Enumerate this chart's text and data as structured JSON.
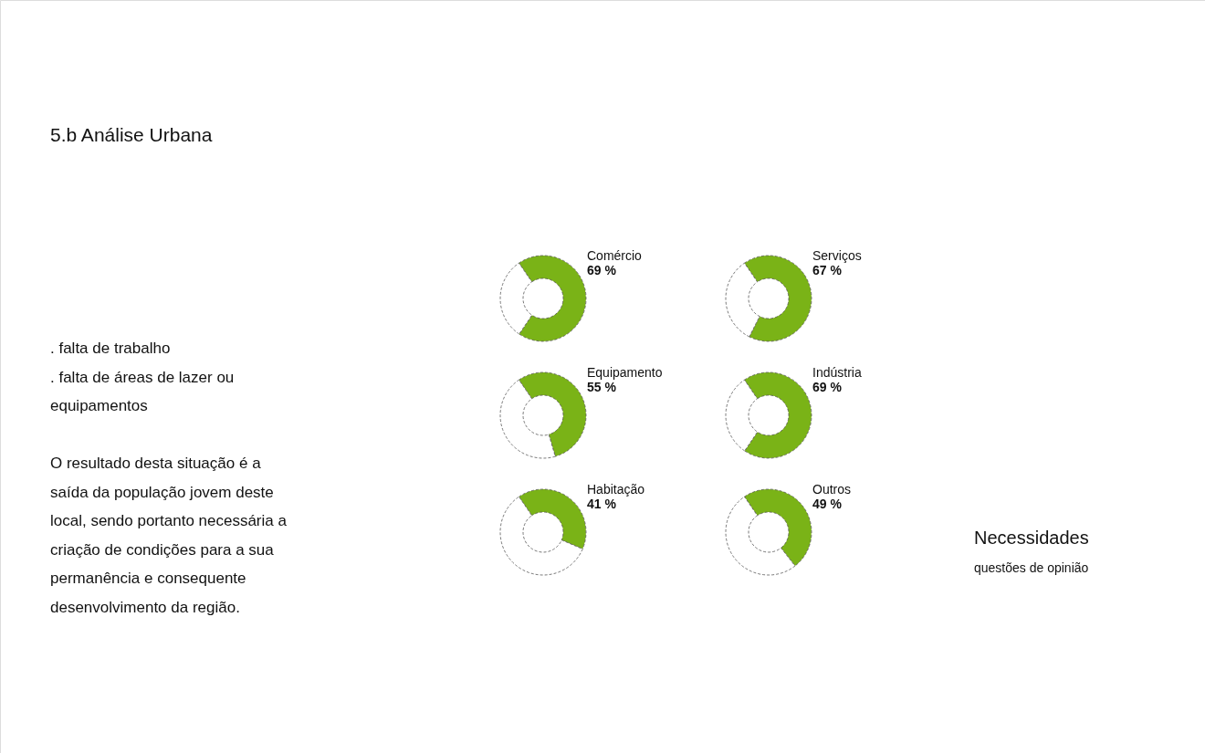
{
  "chart_data": [
    {
      "type": "other",
      "title": "5.b Análise Urbana",
      "annotations": [
        ". falta de trabalho\n. falta de áreas de lazer ou\nequipamentos",
        "O resultado desta situação é a\nsaída da população jovem deste\nlocal, sendo portanto necessária a\ncriação de condições para a sua\npermanência e consequente\ndesenvolvimento da região."
      ]
    },
    {
      "type": "donut",
      "title": "Comércio",
      "categories": [
        null,
        null
      ],
      "values": [
        69,
        31
      ],
      "colors": [
        "#7ab317",
        "#ffffff"
      ],
      "value_labels": [
        "69 %",
        null
      ]
    },
    {
      "type": "donut",
      "title": "Serviços",
      "categories": [
        null,
        null
      ],
      "values": [
        67,
        33
      ],
      "colors": [
        "#7ab317",
        "#ffffff"
      ],
      "value_labels": [
        "67 %",
        null
      ]
    },
    {
      "type": "donut",
      "title": "Equipamento",
      "categories": [
        null,
        null
      ],
      "values": [
        55,
        45
      ],
      "colors": [
        "#7ab317",
        "#ffffff"
      ],
      "value_labels": [
        "55 %",
        null
      ]
    },
    {
      "type": "donut",
      "title": "Indústria",
      "categories": [
        null,
        null
      ],
      "values": [
        69,
        31
      ],
      "colors": [
        "#7ab317",
        "#ffffff"
      ],
      "value_labels": [
        "69 %",
        null
      ]
    },
    {
      "type": "donut",
      "title": "Habitação",
      "categories": [
        null,
        null
      ],
      "values": [
        41,
        59
      ],
      "colors": [
        "#7ab317",
        "#ffffff"
      ],
      "value_labels": [
        "41 %",
        null
      ]
    },
    {
      "type": "donut",
      "title": "Outros",
      "categories": [
        null,
        null
      ],
      "values": [
        49,
        51
      ],
      "colors": [
        "#7ab317",
        "#ffffff"
      ],
      "value_labels": [
        "49 %",
        null
      ]
    },
    {
      "type": "other",
      "title": "Necessidades",
      "subtitle": "questões de opinião"
    }
  ]
}
